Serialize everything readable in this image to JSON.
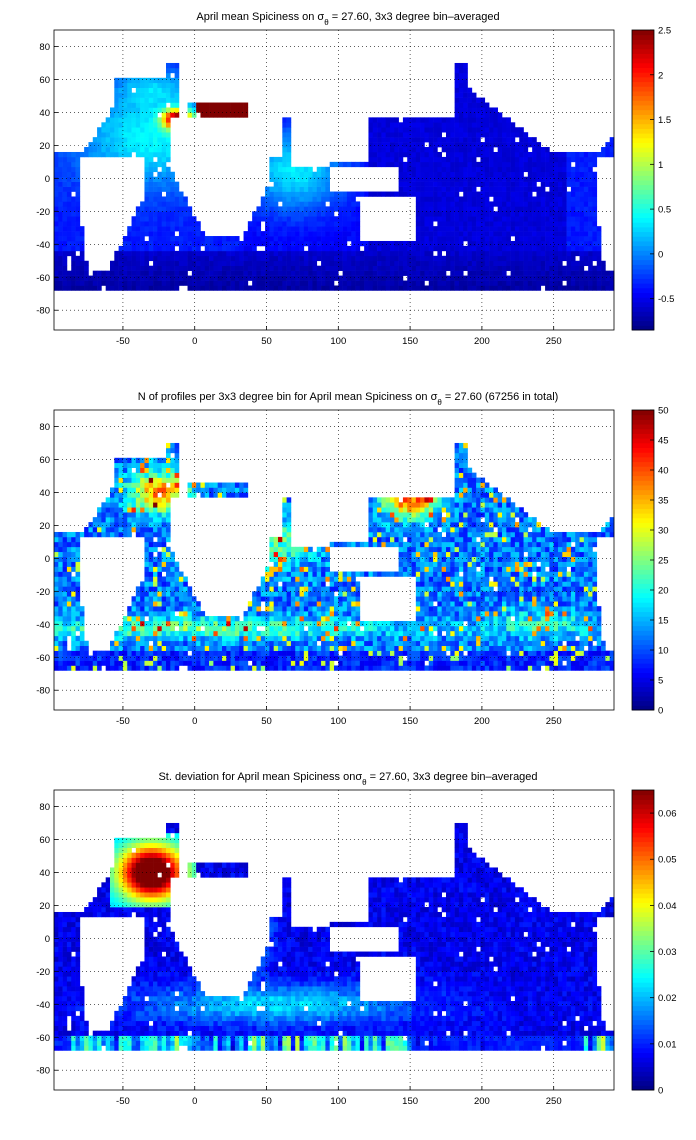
{
  "chart_data": [
    {
      "type": "heatmap",
      "title": "April mean Spiciness on σθ = 27.60, 3x3 degree bin–averaged",
      "title_parts": {
        "pre": "April mean Spiciness on σ",
        "sub": "θ",
        "post": " = 27.60, 3x3 degree bin–averaged"
      },
      "x_ticks": [
        -50,
        0,
        50,
        100,
        150,
        200,
        250
      ],
      "y_ticks": [
        80,
        60,
        40,
        20,
        0,
        -20,
        -40,
        -60,
        -80
      ],
      "xlim": [
        -98,
        292
      ],
      "ylim": [
        -92,
        90
      ],
      "grid": true,
      "colormap": "jet",
      "colorbar": {
        "min": -0.85,
        "max": 2.5,
        "ticks": [
          2.5,
          2,
          1.5,
          1,
          0.5,
          0,
          -0.5
        ]
      },
      "field_note": "Spiciness highest (>2.5) in the Mediterranean outflow near 35N 10W; ~1.2 in Red Sea; ~0.3-0.6 in subtropical Atlantic and Indian Ocean; -0.4 to -0.85 in Pacific and Southern Ocean"
    },
    {
      "type": "heatmap",
      "title": "N of profiles per 3x3 degree bin for April mean Spiciness on σθ = 27.60 (67256 in total)",
      "title_parts": {
        "pre": "N of profiles per 3x3 degree bin for April mean Spiciness on σ",
        "sub": "θ",
        "post": " = 27.60 (67256 in total)"
      },
      "x_ticks": [
        -50,
        0,
        50,
        100,
        150,
        200,
        250
      ],
      "y_ticks": [
        80,
        60,
        40,
        20,
        0,
        -20,
        -40,
        -60,
        -80
      ],
      "xlim": [
        -98,
        292
      ],
      "ylim": [
        -92,
        90
      ],
      "grid": true,
      "colormap": "jet",
      "colorbar": {
        "min": 0,
        "max": 50,
        "ticks": [
          50,
          45,
          40,
          35,
          30,
          25,
          20,
          15,
          10,
          5,
          0
        ]
      },
      "field_note": "Profile counts 5-20 over most of the ocean, maxima (>40) near Japan and the North Atlantic, elevated near 40S"
    },
    {
      "type": "heatmap",
      "title": "St. deviation for April mean Spiciness onσθ = 27.60, 3x3 degree bin–averaged",
      "title_parts": {
        "pre": "St. deviation for April mean Spiciness on",
        "sub": "θ",
        "post": " = 27.60, 3x3 degree bin–averaged",
        "sigma": "σ"
      },
      "x_ticks": [
        -50,
        0,
        50,
        100,
        150,
        200,
        250
      ],
      "y_ticks": [
        80,
        60,
        40,
        20,
        0,
        -20,
        -40,
        -60,
        -80
      ],
      "xlim": [
        -98,
        292
      ],
      "ylim": [
        -92,
        90
      ],
      "grid": true,
      "colormap": "jet",
      "colorbar": {
        "min": 0,
        "max": 0.065,
        "ticks": [
          0.06,
          0.05,
          0.04,
          0.03,
          0.02,
          0.01,
          0
        ]
      },
      "field_note": "Standard deviation >0.06 in the North Atlantic subtropical gyre region, 0.01-0.03 in Southern Ocean, <0.01 in Pacific"
    }
  ]
}
